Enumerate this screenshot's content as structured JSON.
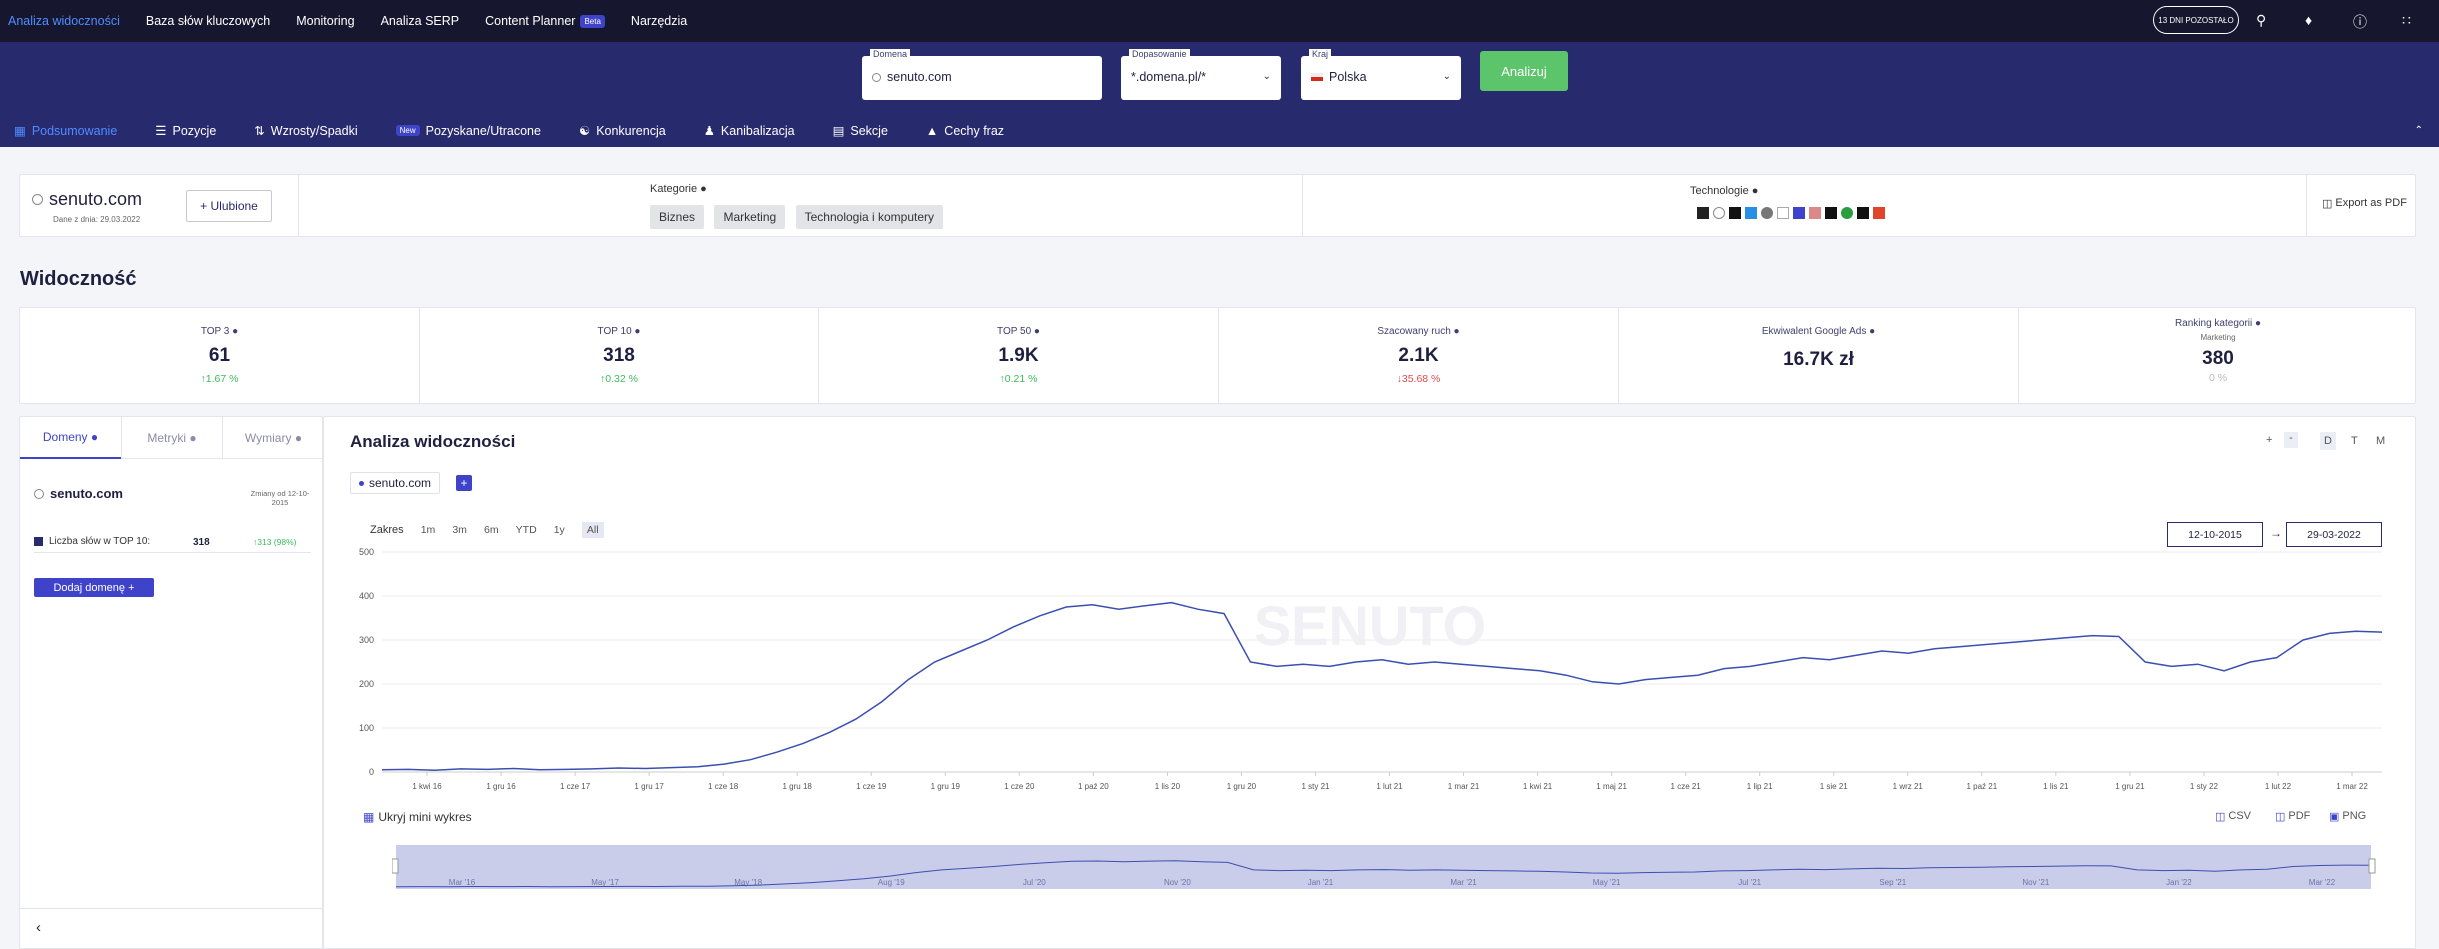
{
  "topnav": {
    "items": [
      "Analiza widoczności",
      "Baza słów kluczowych",
      "Monitoring",
      "Analiza SERP",
      "Content Planner",
      "Narzędzia"
    ],
    "beta_badge": "Beta",
    "trial": "13 DNI POZOSTAŁO"
  },
  "search": {
    "domain_label": "Domena",
    "domain_value": "senuto.com",
    "match_label": "Dopasowanie",
    "match_value": "*.domena.pl/*",
    "country_label": "Kraj",
    "country_value": "Polska",
    "analyze_label": "Analizuj"
  },
  "subnav": {
    "items": [
      "Podsumowanie",
      "Pozycje",
      "Wzrosty/Spadki",
      "Pozyskane/Utracone",
      "Konkurencja",
      "Kanibalizacja",
      "Sekcje",
      "Cechy fraz"
    ],
    "new_badge": "New"
  },
  "summary": {
    "domain": "senuto.com",
    "data_date": "Dane z dnia: 29.03.2022",
    "favorite_label": "+ Ulubione",
    "categories_label": "Kategorie",
    "categories": [
      "Biznes",
      "Marketing",
      "Technologia i komputery"
    ],
    "technologies_label": "Technologie",
    "export_label": "Export as PDF"
  },
  "visibility": {
    "title": "Widoczność",
    "kpis": [
      {
        "label": "TOP 3",
        "value": "61",
        "change": "1.67 %",
        "dir": "up"
      },
      {
        "label": "TOP 10",
        "value": "318",
        "change": "0.32 %",
        "dir": "up"
      },
      {
        "label": "TOP 50",
        "value": "1.9K",
        "change": "0.21 %",
        "dir": "up"
      },
      {
        "label": "Szacowany ruch",
        "value": "2.1K",
        "change": "35.68 %",
        "dir": "down"
      },
      {
        "label": "Ekwiwalent Google Ads",
        "value": "16.7K zł",
        "change": "",
        "dir": ""
      },
      {
        "label": "Ranking kategorii",
        "sub": "Marketing",
        "value": "380",
        "change": "0 %",
        "dir": "flat"
      }
    ]
  },
  "left_panel": {
    "tabs": [
      "Domeny",
      "Metryki",
      "Wymiary"
    ],
    "domain": "senuto.com",
    "changes_label": "Zmiany od 12-10-2015",
    "metric_label": "Liczba słów w TOP 10:",
    "metric_value": "318",
    "metric_change": "313 (98%)",
    "add_domain_label": "Dodaj domenę +"
  },
  "chart_panel": {
    "title": "Analiza widoczności",
    "chip_domain": "senuto.com",
    "zoom_in": "+",
    "zoom_out": "-",
    "granularity": [
      "D",
      "T",
      "M"
    ],
    "range_label": "Zakres",
    "ranges": [
      "1m",
      "3m",
      "6m",
      "YTD",
      "1y",
      "All"
    ],
    "date_from": "12-10-2015",
    "date_to": "29-03-2022",
    "hide_mini_label": "Ukryj mini wykres",
    "export": [
      "CSV",
      "PDF",
      "PNG"
    ],
    "watermark": "SENUTO",
    "navigator_labels": [
      "Mar '16",
      "May '17",
      "May '18",
      "Aug '19",
      "Jul '20",
      "Nov '20",
      "Jan '21",
      "Mar '21",
      "May '21",
      "Jul '21",
      "Sep '21",
      "Nov '21",
      "Jan '22",
      "Mar '22"
    ]
  },
  "chart_data": {
    "type": "line",
    "x_ticks": [
      "1 kwi 16",
      "1 gru 16",
      "1 cze 17",
      "1 gru 17",
      "1 cze 18",
      "1 gru 18",
      "1 cze 19",
      "1 gru 19",
      "1 cze 20",
      "1 paź 20",
      "1 lis 20",
      "1 gru 20",
      "1 sty 21",
      "1 lut 21",
      "1 mar 21",
      "1 kwi 21",
      "1 maj 21",
      "1 cze 21",
      "1 lip 21",
      "1 sie 21",
      "1 wrz 21",
      "1 paź 21",
      "1 lis 21",
      "1 gru 21",
      "1 sty 22",
      "1 lut 22",
      "1 mar 22"
    ],
    "y_ticks": [
      "0",
      "100",
      "200",
      "300",
      "400",
      "500"
    ],
    "ylim": [
      0,
      500
    ],
    "series": [
      {
        "values": [
          5,
          6,
          4,
          7,
          6,
          8,
          5,
          6,
          7,
          9,
          8,
          10,
          12,
          18,
          28,
          45,
          65,
          90,
          120,
          160,
          210,
          250,
          275,
          300,
          330,
          355,
          375,
          380,
          370,
          378,
          385,
          370,
          360,
          250,
          240,
          245,
          240,
          250,
          255,
          245,
          250,
          245,
          240,
          235,
          230,
          220,
          205,
          200,
          210,
          215,
          220,
          235,
          240,
          250,
          260,
          255,
          265,
          275,
          270,
          280,
          285,
          290,
          295,
          300,
          305,
          310,
          308,
          250,
          240,
          245,
          230,
          250,
          260,
          300,
          315,
          320,
          318
        ]
      }
    ]
  }
}
